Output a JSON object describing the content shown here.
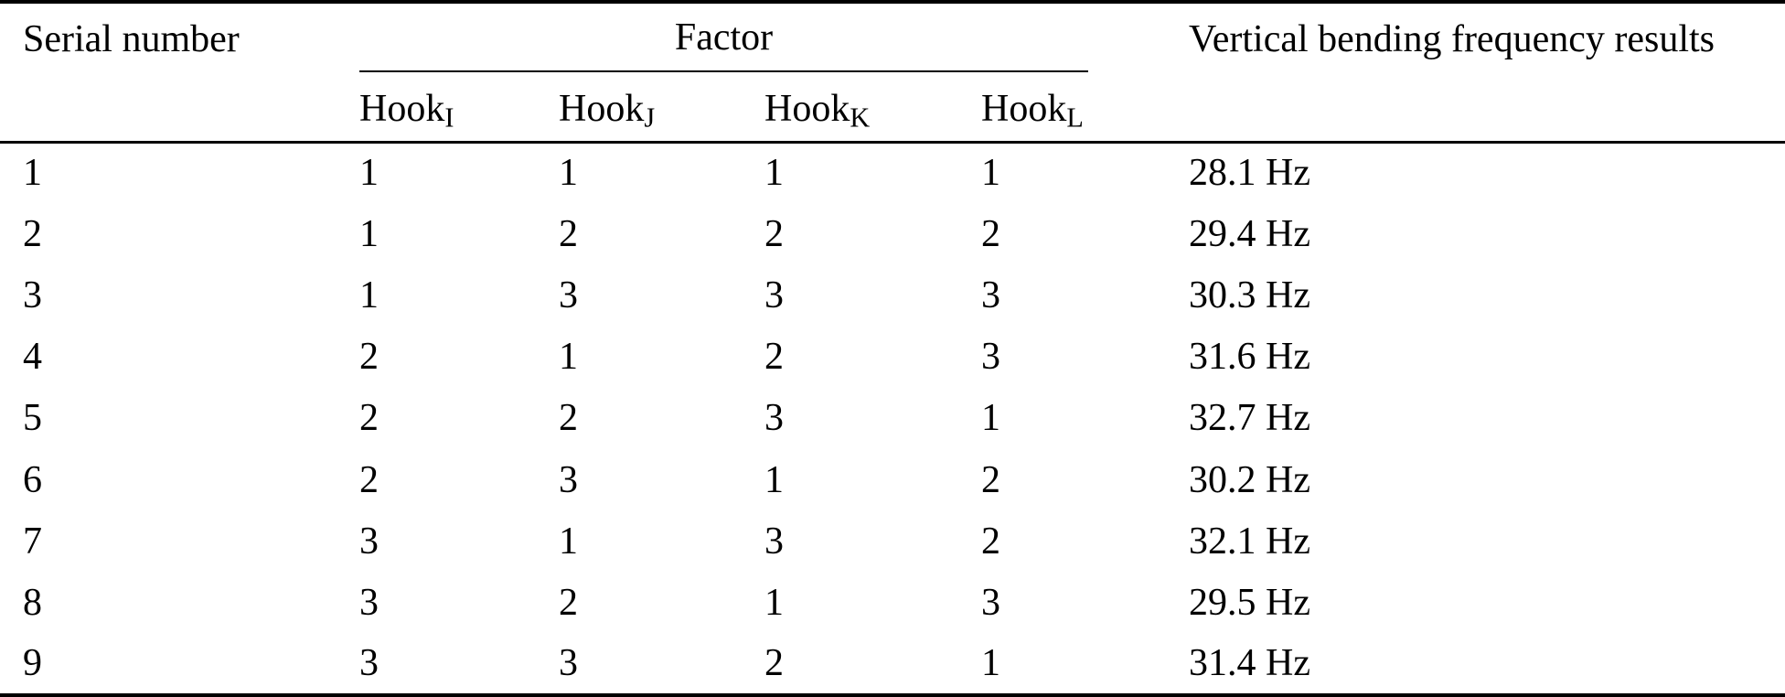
{
  "colors": {
    "background": "#ffffff",
    "text": "#000000",
    "rule": "#000000"
  },
  "header": {
    "serial": "Serial number",
    "factor_group": "Factor",
    "results": "Vertical bending frequency results",
    "factors": [
      {
        "base": "Hook",
        "sub": "I"
      },
      {
        "base": "Hook",
        "sub": "J"
      },
      {
        "base": "Hook",
        "sub": "K"
      },
      {
        "base": "Hook",
        "sub": "L"
      }
    ]
  },
  "rows": [
    {
      "serial": "1",
      "hooks": [
        "1",
        "1",
        "1",
        "1"
      ],
      "result": "28.1 Hz"
    },
    {
      "serial": "2",
      "hooks": [
        "1",
        "2",
        "2",
        "2"
      ],
      "result": "29.4 Hz"
    },
    {
      "serial": "3",
      "hooks": [
        "1",
        "3",
        "3",
        "3"
      ],
      "result": "30.3 Hz"
    },
    {
      "serial": "4",
      "hooks": [
        "2",
        "1",
        "2",
        "3"
      ],
      "result": "31.6 Hz"
    },
    {
      "serial": "5",
      "hooks": [
        "2",
        "2",
        "3",
        "1"
      ],
      "result": "32.7 Hz"
    },
    {
      "serial": "6",
      "hooks": [
        "2",
        "3",
        "1",
        "2"
      ],
      "result": "30.2 Hz"
    },
    {
      "serial": "7",
      "hooks": [
        "3",
        "1",
        "3",
        "2"
      ],
      "result": "32.1 Hz"
    },
    {
      "serial": "8",
      "hooks": [
        "3",
        "2",
        "1",
        "3"
      ],
      "result": "29.5 Hz"
    },
    {
      "serial": "9",
      "hooks": [
        "3",
        "3",
        "2",
        "1"
      ],
      "result": "31.4 Hz"
    }
  ]
}
